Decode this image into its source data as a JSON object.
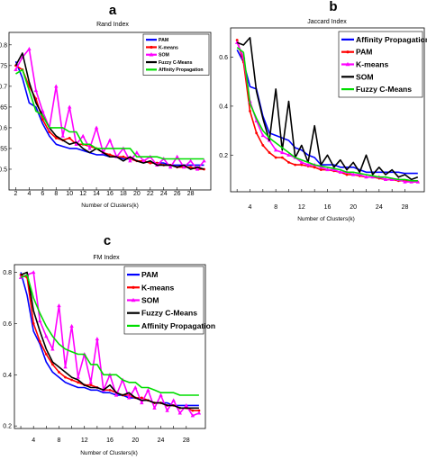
{
  "chart_data": [
    {
      "panel": "a",
      "type": "line",
      "title": "Rand Index",
      "xlabel": "Number of Clusters(k)",
      "ylabel": "",
      "xlim": [
        1,
        31
      ],
      "ylim": [
        0.45,
        0.83
      ],
      "xticks": [
        2,
        4,
        6,
        8,
        10,
        12,
        14,
        16,
        18,
        20,
        22,
        24,
        26,
        28
      ],
      "yticks": [
        0.5,
        0.55,
        0.6,
        0.65,
        0.7,
        0.75,
        0.8
      ],
      "ytick_labels": [
        "0.5",
        "0.55",
        "0.6",
        "0.65",
        "0.7",
        "0.75",
        "0.8"
      ],
      "legend_loc": "top-right",
      "x": [
        2,
        3,
        4,
        5,
        6,
        7,
        8,
        9,
        10,
        11,
        12,
        13,
        14,
        15,
        16,
        17,
        18,
        19,
        20,
        21,
        22,
        23,
        24,
        25,
        26,
        27,
        28,
        29,
        30
      ],
      "series": [
        {
          "name": "PAM",
          "color": "#0000ff",
          "marker": "none",
          "values": [
            0.76,
            0.72,
            0.66,
            0.65,
            0.61,
            0.58,
            0.56,
            0.555,
            0.55,
            0.55,
            0.545,
            0.54,
            0.535,
            0.535,
            0.53,
            0.53,
            0.525,
            0.525,
            0.52,
            0.52,
            0.515,
            0.515,
            0.515,
            0.51,
            0.51,
            0.51,
            0.51,
            0.51,
            0.51
          ]
        },
        {
          "name": "K-means",
          "color": "#ff0000",
          "marker": "dot",
          "values": [
            0.75,
            0.74,
            0.7,
            0.67,
            0.62,
            0.59,
            0.575,
            0.57,
            0.575,
            0.56,
            0.56,
            0.555,
            0.55,
            0.54,
            0.535,
            0.53,
            0.53,
            0.525,
            0.52,
            0.52,
            0.515,
            0.515,
            0.51,
            0.51,
            0.505,
            0.505,
            0.505,
            0.5,
            0.5
          ]
        },
        {
          "name": "SOM",
          "color": "#ff00ff",
          "marker": "triangle",
          "values": [
            0.74,
            0.77,
            0.79,
            0.69,
            0.64,
            0.6,
            0.7,
            0.58,
            0.65,
            0.56,
            0.58,
            0.55,
            0.6,
            0.54,
            0.57,
            0.53,
            0.55,
            0.52,
            0.54,
            0.52,
            0.53,
            0.51,
            0.525,
            0.505,
            0.53,
            0.505,
            0.52,
            0.5,
            0.52
          ]
        },
        {
          "name": "Fuzzy C-Means",
          "color": "#000000",
          "marker": "none",
          "values": [
            0.75,
            0.78,
            0.71,
            0.66,
            0.63,
            0.6,
            0.58,
            0.57,
            0.56,
            0.565,
            0.55,
            0.54,
            0.55,
            0.54,
            0.53,
            0.53,
            0.52,
            0.53,
            0.52,
            0.515,
            0.52,
            0.51,
            0.51,
            0.51,
            0.505,
            0.51,
            0.5,
            0.505,
            0.5
          ]
        },
        {
          "name": "Affinity Propagation",
          "color": "#00dd00",
          "marker": "none",
          "values": [
            0.73,
            0.74,
            0.69,
            0.64,
            0.63,
            0.6,
            0.6,
            0.6,
            0.59,
            0.59,
            0.56,
            0.56,
            0.55,
            0.55,
            0.55,
            0.55,
            0.55,
            0.55,
            0.53,
            0.53,
            0.53,
            0.53,
            0.525,
            0.525,
            0.525,
            0.525,
            0.525,
            0.525,
            0.525
          ]
        }
      ]
    },
    {
      "panel": "b",
      "type": "line",
      "title": "Jaccard Index",
      "xlabel": "Number of Clusters(k)",
      "ylabel": "",
      "xlim": [
        1,
        31
      ],
      "ylim": [
        0.05,
        0.72
      ],
      "xticks": [
        2,
        4,
        6,
        8,
        10,
        12,
        14,
        16,
        18,
        20,
        22,
        24,
        26,
        28
      ],
      "xtick_labels": [
        "",
        "4",
        "",
        "8",
        "",
        "12",
        "",
        "16",
        "",
        "20",
        "",
        "24",
        "",
        "28"
      ],
      "yticks": [
        0.2,
        0.4,
        0.6
      ],
      "ytick_labels": [
        "0.2",
        "0.4",
        "0.6"
      ],
      "legend_loc": "top-right",
      "x": [
        2,
        3,
        4,
        5,
        6,
        7,
        8,
        9,
        10,
        11,
        12,
        13,
        14,
        15,
        16,
        17,
        18,
        19,
        20,
        21,
        22,
        23,
        24,
        25,
        26,
        27,
        28,
        29,
        30
      ],
      "series": [
        {
          "name": "Affinity Propagation",
          "color": "#0000ff",
          "marker": "none",
          "values": [
            0.63,
            0.58,
            0.48,
            0.47,
            0.36,
            0.29,
            0.28,
            0.27,
            0.26,
            0.23,
            0.22,
            0.2,
            0.19,
            0.16,
            0.16,
            0.16,
            0.15,
            0.15,
            0.15,
            0.14,
            0.13,
            0.13,
            0.13,
            0.13,
            0.13,
            0.13,
            0.125,
            0.125,
            0.125
          ]
        },
        {
          "name": "PAM",
          "color": "#ff0000",
          "marker": "dot",
          "values": [
            0.67,
            0.58,
            0.38,
            0.29,
            0.24,
            0.21,
            0.19,
            0.19,
            0.17,
            0.16,
            0.16,
            0.155,
            0.15,
            0.14,
            0.14,
            0.135,
            0.13,
            0.12,
            0.12,
            0.115,
            0.11,
            0.11,
            0.105,
            0.1,
            0.1,
            0.095,
            0.095,
            0.09,
            0.09
          ]
        },
        {
          "name": "K-means",
          "color": "#ff00ff",
          "marker": "triangle",
          "values": [
            0.66,
            0.6,
            0.42,
            0.34,
            0.28,
            0.26,
            0.22,
            0.21,
            0.2,
            0.19,
            0.17,
            0.16,
            0.16,
            0.15,
            0.14,
            0.14,
            0.13,
            0.13,
            0.12,
            0.12,
            0.11,
            0.11,
            0.11,
            0.1,
            0.1,
            0.1,
            0.09,
            0.09,
            0.09
          ]
        },
        {
          "name": "SOM",
          "color": "#000000",
          "marker": "none",
          "values": [
            0.66,
            0.65,
            0.68,
            0.46,
            0.35,
            0.26,
            0.47,
            0.22,
            0.42,
            0.19,
            0.24,
            0.17,
            0.32,
            0.16,
            0.2,
            0.15,
            0.18,
            0.14,
            0.17,
            0.13,
            0.2,
            0.12,
            0.15,
            0.12,
            0.14,
            0.11,
            0.12,
            0.1,
            0.11
          ]
        },
        {
          "name": "Fuzzy C-Means",
          "color": "#00dd00",
          "marker": "none",
          "values": [
            0.64,
            0.62,
            0.41,
            0.35,
            0.3,
            0.27,
            0.25,
            0.23,
            0.21,
            0.19,
            0.18,
            0.17,
            0.16,
            0.155,
            0.15,
            0.145,
            0.14,
            0.13,
            0.13,
            0.125,
            0.12,
            0.115,
            0.11,
            0.11,
            0.105,
            0.1,
            0.1,
            0.095,
            0.095
          ]
        }
      ]
    },
    {
      "panel": "c",
      "type": "line",
      "title": "FM Index",
      "xlabel": "Number of Clusters(k)",
      "ylabel": "",
      "xlim": [
        1,
        31
      ],
      "ylim": [
        0.19,
        0.83
      ],
      "xticks": [
        2,
        4,
        6,
        8,
        10,
        12,
        14,
        16,
        18,
        20,
        22,
        24,
        26,
        28
      ],
      "xtick_labels": [
        "",
        "4",
        "",
        "8",
        "",
        "12",
        "",
        "16",
        "",
        "20",
        "",
        "24",
        "",
        "28"
      ],
      "yticks": [
        0.2,
        0.4,
        0.6,
        0.8
      ],
      "ytick_labels": [
        "0.2",
        "0.4",
        "0.6",
        "0.8"
      ],
      "legend_loc": "top-right",
      "x": [
        2,
        3,
        4,
        5,
        6,
        7,
        8,
        9,
        10,
        11,
        12,
        13,
        14,
        15,
        16,
        17,
        18,
        19,
        20,
        21,
        22,
        23,
        24,
        25,
        26,
        27,
        28,
        29,
        30
      ],
      "series": [
        {
          "name": "PAM",
          "color": "#0000ff",
          "marker": "none",
          "values": [
            0.8,
            0.71,
            0.57,
            0.52,
            0.45,
            0.41,
            0.39,
            0.37,
            0.36,
            0.35,
            0.35,
            0.34,
            0.34,
            0.33,
            0.33,
            0.32,
            0.32,
            0.31,
            0.31,
            0.3,
            0.3,
            0.29,
            0.29,
            0.29,
            0.28,
            0.28,
            0.28,
            0.28,
            0.28
          ]
        },
        {
          "name": "K-means",
          "color": "#ff0000",
          "marker": "dot",
          "values": [
            0.79,
            0.78,
            0.6,
            0.53,
            0.48,
            0.44,
            0.41,
            0.39,
            0.38,
            0.37,
            0.36,
            0.36,
            0.35,
            0.34,
            0.34,
            0.33,
            0.32,
            0.32,
            0.31,
            0.31,
            0.3,
            0.29,
            0.29,
            0.28,
            0.28,
            0.27,
            0.27,
            0.26,
            0.26
          ]
        },
        {
          "name": "SOM",
          "color": "#ff00ff",
          "marker": "triangle",
          "values": [
            0.78,
            0.79,
            0.8,
            0.61,
            0.55,
            0.5,
            0.67,
            0.43,
            0.59,
            0.39,
            0.48,
            0.37,
            0.54,
            0.34,
            0.4,
            0.32,
            0.38,
            0.31,
            0.35,
            0.29,
            0.34,
            0.27,
            0.32,
            0.26,
            0.3,
            0.25,
            0.28,
            0.24,
            0.25
          ]
        },
        {
          "name": "Fuzzy C-Means",
          "color": "#000000",
          "marker": "none",
          "values": [
            0.79,
            0.8,
            0.65,
            0.57,
            0.5,
            0.45,
            0.43,
            0.41,
            0.39,
            0.38,
            0.36,
            0.35,
            0.35,
            0.34,
            0.36,
            0.33,
            0.32,
            0.33,
            0.31,
            0.3,
            0.3,
            0.29,
            0.29,
            0.28,
            0.28,
            0.27,
            0.27,
            0.27,
            0.27
          ]
        },
        {
          "name": "Affinity Propagation",
          "color": "#00dd00",
          "marker": "none",
          "values": [
            0.78,
            0.79,
            0.7,
            0.64,
            0.59,
            0.55,
            0.52,
            0.5,
            0.49,
            0.48,
            0.48,
            0.44,
            0.44,
            0.4,
            0.4,
            0.4,
            0.38,
            0.37,
            0.37,
            0.35,
            0.35,
            0.34,
            0.33,
            0.33,
            0.33,
            0.32,
            0.32,
            0.32,
            0.32
          ]
        }
      ]
    }
  ]
}
